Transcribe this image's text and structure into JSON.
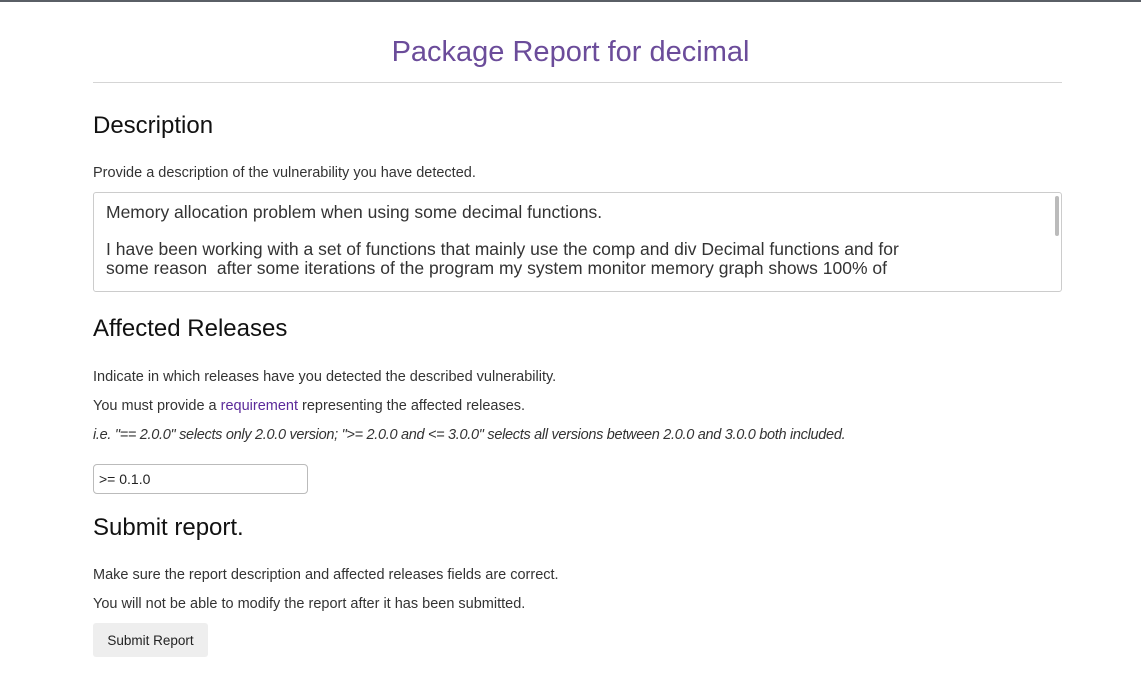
{
  "header": {
    "title": "Package Report for decimal"
  },
  "description": {
    "heading": "Description",
    "help": "Provide a description of the vulnerability you have detected.",
    "value_line1": "Memory allocation problem when using some decimal functions.",
    "value_line2": "I have been working with a set of functions that mainly use the comp and div Decimal functions and for",
    "value_line3": "some reason  after some iterations of the program my system monitor memory graph shows 100% of"
  },
  "affected": {
    "heading": "Affected Releases",
    "help1": "Indicate in which releases have you detected the described vulnerability.",
    "help2_pre": "You must provide a ",
    "help2_link": "requirement",
    "help2_post": " representing the affected releases.",
    "example": "i.e. \"== 2.0.0\" selects only 2.0.0 version; \">= 2.0.0 and <= 3.0.0\" selects all versions between 2.0.0 and 3.0.0 both included.",
    "value": ">= 0.1.0"
  },
  "submit": {
    "heading": "Submit report.",
    "help1": "Make sure the report description and affected releases fields are correct.",
    "help2": "You will not be able to modify the report after it has been submitted.",
    "button": "Submit Report"
  }
}
